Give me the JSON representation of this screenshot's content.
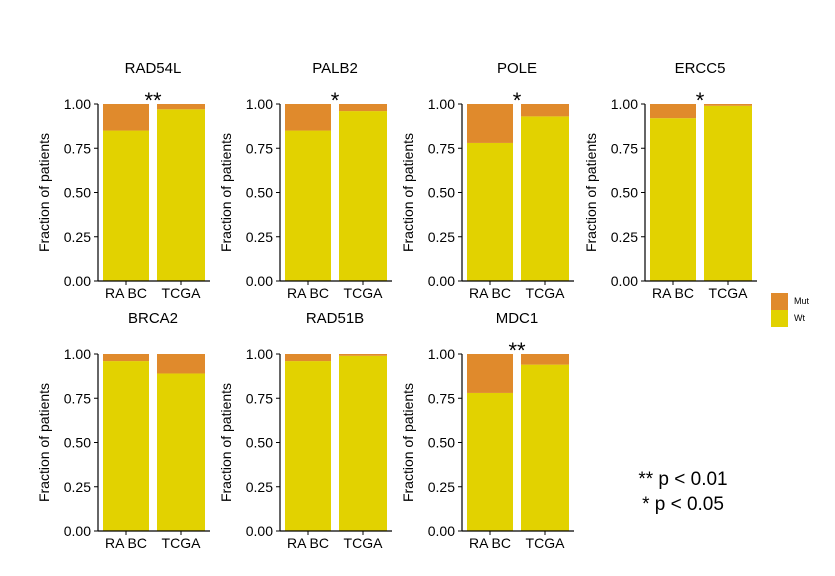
{
  "chart_data": {
    "type": "bar",
    "stacked": true,
    "categories": [
      "RA BC",
      "TCGA"
    ],
    "ylabel": "Fraction of patients",
    "ylim": [
      0,
      1
    ],
    "yticks": [
      "0.00",
      "0.25",
      "0.50",
      "0.75",
      "1.00"
    ],
    "legend": {
      "placement": "right",
      "entries": [
        {
          "name": "Mut",
          "color": "#e08a2c"
        },
        {
          "name": "Wt",
          "color": "#e2d200"
        }
      ]
    },
    "panels": [
      {
        "title": "RAD54L",
        "significance": "**",
        "series": [
          {
            "name": "Wt",
            "values": [
              0.85,
              0.97
            ]
          },
          {
            "name": "Mut",
            "values": [
              0.15,
              0.03
            ]
          }
        ]
      },
      {
        "title": "PALB2",
        "significance": "*",
        "series": [
          {
            "name": "Wt",
            "values": [
              0.85,
              0.96
            ]
          },
          {
            "name": "Mut",
            "values": [
              0.15,
              0.04
            ]
          }
        ]
      },
      {
        "title": "POLE",
        "significance": "*",
        "series": [
          {
            "name": "Wt",
            "values": [
              0.78,
              0.93
            ]
          },
          {
            "name": "Mut",
            "values": [
              0.22,
              0.07
            ]
          }
        ]
      },
      {
        "title": "ERCC5",
        "significance": "*",
        "series": [
          {
            "name": "Wt",
            "values": [
              0.92,
              0.99
            ]
          },
          {
            "name": "Mut",
            "values": [
              0.08,
              0.01
            ]
          }
        ]
      },
      {
        "title": "BRCA2",
        "significance": "",
        "series": [
          {
            "name": "Wt",
            "values": [
              0.96,
              0.89
            ]
          },
          {
            "name": "Mut",
            "values": [
              0.04,
              0.11
            ]
          }
        ]
      },
      {
        "title": "RAD51B",
        "significance": "",
        "series": [
          {
            "name": "Wt",
            "values": [
              0.96,
              0.99
            ]
          },
          {
            "name": "Mut",
            "values": [
              0.04,
              0.01
            ]
          }
        ]
      },
      {
        "title": "MDC1",
        "significance": "**",
        "series": [
          {
            "name": "Wt",
            "values": [
              0.78,
              0.94
            ]
          },
          {
            "name": "Mut",
            "values": [
              0.22,
              0.06
            ]
          }
        ]
      }
    ],
    "annotations": [
      "** p < 0.01",
      "* p < 0.05"
    ]
  }
}
